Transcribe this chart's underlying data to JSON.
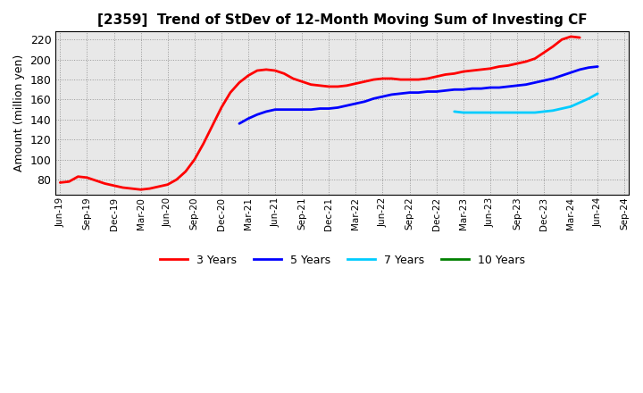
{
  "title": "[2359]  Trend of StDev of 12-Month Moving Sum of Investing CF",
  "ylabel": "Amount (million yen)",
  "ylim": [
    65,
    228
  ],
  "yticks": [
    80,
    100,
    120,
    140,
    160,
    180,
    200,
    220
  ],
  "background_color": "#ffffff",
  "grid_color": "#aaaaaa",
  "series": {
    "3Y": {
      "color": "#ff0000",
      "label": "3 Years",
      "x": [
        0,
        1,
        2,
        3,
        4,
        5,
        6,
        7,
        8,
        9,
        10,
        11,
        12,
        13,
        14,
        15,
        16,
        17,
        18,
        19,
        20,
        21,
        22,
        23,
        24,
        25,
        26,
        27,
        28,
        29,
        30,
        31,
        32,
        33,
        34,
        35,
        36,
        37,
        38,
        39,
        40,
        41,
        42,
        43,
        44,
        45,
        46,
        47,
        48,
        49,
        50,
        51,
        52,
        53,
        54,
        55,
        56,
        57,
        58
      ],
      "y": [
        77,
        78,
        83,
        82,
        79,
        76,
        74,
        72,
        71,
        70,
        71,
        73,
        75,
        80,
        88,
        100,
        116,
        134,
        152,
        167,
        177,
        184,
        189,
        190,
        189,
        186,
        181,
        178,
        175,
        174,
        173,
        173,
        174,
        176,
        178,
        180,
        181,
        181,
        180,
        180,
        180,
        181,
        183,
        185,
        186,
        188,
        189,
        190,
        191,
        193,
        194,
        196,
        198,
        201,
        207,
        213,
        220,
        223,
        222
      ]
    },
    "5Y": {
      "color": "#0000ff",
      "label": "5 Years",
      "x": [
        20,
        21,
        22,
        23,
        24,
        25,
        26,
        27,
        28,
        29,
        30,
        31,
        32,
        33,
        34,
        35,
        36,
        37,
        38,
        39,
        40,
        41,
        42,
        43,
        44,
        45,
        46,
        47,
        48,
        49,
        50,
        51,
        52,
        53,
        54,
        55,
        56,
        57,
        58,
        59,
        60
      ],
      "y": [
        136,
        141,
        145,
        148,
        150,
        150,
        150,
        150,
        150,
        151,
        151,
        152,
        154,
        156,
        158,
        161,
        163,
        165,
        166,
        167,
        167,
        168,
        168,
        169,
        170,
        170,
        171,
        171,
        172,
        172,
        173,
        174,
        175,
        177,
        179,
        181,
        184,
        187,
        190,
        192,
        193
      ]
    },
    "7Y": {
      "color": "#00ccff",
      "label": "7 Years",
      "x": [
        44,
        45,
        46,
        47,
        48,
        49,
        50,
        51,
        52,
        53,
        54,
        55,
        56,
        57,
        58,
        59,
        60
      ],
      "y": [
        148,
        147,
        147,
        147,
        147,
        147,
        147,
        147,
        147,
        147,
        148,
        149,
        151,
        153,
        157,
        161,
        166
      ]
    },
    "10Y": {
      "color": "#008000",
      "label": "10 Years",
      "x": [],
      "y": []
    }
  },
  "xtick_labels": [
    "Jun-19",
    "Sep-19",
    "Dec-19",
    "Mar-20",
    "Jun-20",
    "Sep-20",
    "Dec-20",
    "Mar-21",
    "Jun-21",
    "Sep-21",
    "Dec-21",
    "Mar-22",
    "Jun-22",
    "Sep-22",
    "Dec-22",
    "Mar-23",
    "Jun-23",
    "Sep-23",
    "Dec-23",
    "Mar-24",
    "Jun-24",
    "Sep-24"
  ],
  "xtick_positions": [
    0,
    3,
    6,
    9,
    12,
    15,
    18,
    21,
    24,
    27,
    30,
    33,
    36,
    39,
    42,
    45,
    48,
    51,
    54,
    57,
    60,
    63
  ],
  "xlim": [
    -0.5,
    63.5
  ]
}
